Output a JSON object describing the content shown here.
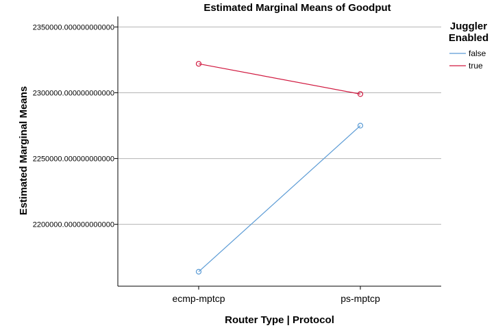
{
  "chart_data": {
    "type": "line",
    "title": "Estimated Marginal Means of Goodput",
    "xlabel": "Router Type | Protocol",
    "ylabel": "Estimated Marginal Means",
    "categories": [
      "ecmp-mptcp",
      "ps-mptcp"
    ],
    "ylim": [
      2153000,
      2358000
    ],
    "yticks": [
      {
        "value": 2200000,
        "label": "2200000.000000000000"
      },
      {
        "value": 2250000,
        "label": "2250000.000000000000"
      },
      {
        "value": 2300000,
        "label": "2300000.000000000000"
      },
      {
        "value": 2350000,
        "label": "2350000.000000000000"
      }
    ],
    "grid": true,
    "legend": {
      "title_lines": [
        "Juggler",
        "Enabled"
      ],
      "placement": "top-right"
    },
    "series": [
      {
        "name": "false",
        "color": "#5b9bd5",
        "values": [
          2164000,
          2275000
        ]
      },
      {
        "name": "true",
        "color": "#d0173e",
        "values": [
          2322000,
          2299000
        ]
      }
    ]
  }
}
